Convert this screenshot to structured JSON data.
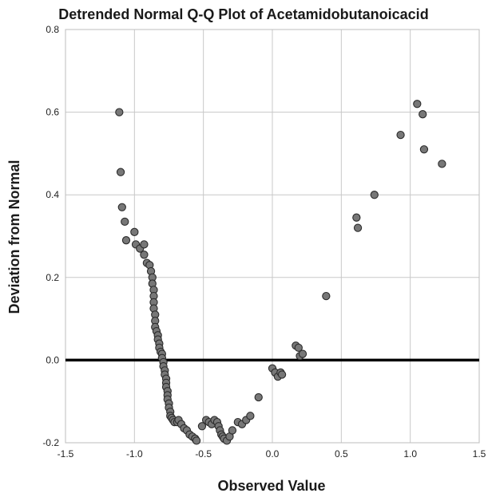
{
  "chart_data": {
    "type": "scatter",
    "title": "Detrended Normal Q-Q Plot of Acetamidobutanoicacid",
    "xlabel": "Observed Value",
    "ylabel": "Deviation from Normal",
    "xlim": [
      -1.5,
      1.5
    ],
    "ylim": [
      -0.2,
      0.8
    ],
    "xticks": [
      -1.5,
      -1.0,
      -0.5,
      0.0,
      0.5,
      1.0,
      1.5
    ],
    "xtick_labels": [
      "-1.5",
      "-1.0",
      "-0.5",
      "0.0",
      "0.5",
      "1.0",
      "1.5"
    ],
    "yticks": [
      -0.2,
      0.0,
      0.2,
      0.4,
      0.6,
      0.8
    ],
    "ytick_labels": [
      "-0.2",
      "0.0",
      "0.2",
      "0.4",
      "0.6",
      "0.8"
    ],
    "grid": true,
    "reference_line_y": 0.0,
    "colors": {
      "marker_fill": "#777777",
      "marker_edge": "#2b2b2b",
      "grid": "#c8c8c8",
      "reference_line": "#000000"
    },
    "points": [
      {
        "x": -1.11,
        "y": 0.6
      },
      {
        "x": -1.1,
        "y": 0.455
      },
      {
        "x": -1.09,
        "y": 0.37
      },
      {
        "x": -1.07,
        "y": 0.335
      },
      {
        "x": -1.06,
        "y": 0.29
      },
      {
        "x": -1.0,
        "y": 0.31
      },
      {
        "x": -0.99,
        "y": 0.28
      },
      {
        "x": -0.96,
        "y": 0.27
      },
      {
        "x": -0.93,
        "y": 0.28
      },
      {
        "x": -0.93,
        "y": 0.255
      },
      {
        "x": -0.91,
        "y": 0.235
      },
      {
        "x": -0.89,
        "y": 0.23
      },
      {
        "x": -0.88,
        "y": 0.215
      },
      {
        "x": -0.87,
        "y": 0.2
      },
      {
        "x": -0.87,
        "y": 0.185
      },
      {
        "x": -0.86,
        "y": 0.17
      },
      {
        "x": -0.86,
        "y": 0.155
      },
      {
        "x": -0.86,
        "y": 0.14
      },
      {
        "x": -0.86,
        "y": 0.125
      },
      {
        "x": -0.85,
        "y": 0.11
      },
      {
        "x": -0.85,
        "y": 0.095
      },
      {
        "x": -0.85,
        "y": 0.08
      },
      {
        "x": -0.84,
        "y": 0.07
      },
      {
        "x": -0.83,
        "y": 0.06
      },
      {
        "x": -0.83,
        "y": 0.05
      },
      {
        "x": -0.82,
        "y": 0.04
      },
      {
        "x": -0.82,
        "y": 0.03
      },
      {
        "x": -0.81,
        "y": 0.02
      },
      {
        "x": -0.8,
        "y": 0.015
      },
      {
        "x": -0.8,
        "y": 0.005
      },
      {
        "x": -0.79,
        "y": -0.005
      },
      {
        "x": -0.79,
        "y": -0.015
      },
      {
        "x": -0.78,
        "y": -0.025
      },
      {
        "x": -0.78,
        "y": -0.035
      },
      {
        "x": -0.77,
        "y": -0.045
      },
      {
        "x": -0.77,
        "y": -0.055
      },
      {
        "x": -0.77,
        "y": -0.065
      },
      {
        "x": -0.76,
        "y": -0.075
      },
      {
        "x": -0.76,
        "y": -0.085
      },
      {
        "x": -0.76,
        "y": -0.095
      },
      {
        "x": -0.75,
        "y": -0.105
      },
      {
        "x": -0.75,
        "y": -0.115
      },
      {
        "x": -0.74,
        "y": -0.125
      },
      {
        "x": -0.74,
        "y": -0.135
      },
      {
        "x": -0.73,
        "y": -0.14
      },
      {
        "x": -0.72,
        "y": -0.145
      },
      {
        "x": -0.71,
        "y": -0.15
      },
      {
        "x": -0.69,
        "y": -0.15
      },
      {
        "x": -0.68,
        "y": -0.145
      },
      {
        "x": -0.66,
        "y": -0.155
      },
      {
        "x": -0.64,
        "y": -0.165
      },
      {
        "x": -0.62,
        "y": -0.17
      },
      {
        "x": -0.6,
        "y": -0.18
      },
      {
        "x": -0.58,
        "y": -0.185
      },
      {
        "x": -0.56,
        "y": -0.19
      },
      {
        "x": -0.55,
        "y": -0.195
      },
      {
        "x": -0.51,
        "y": -0.16
      },
      {
        "x": -0.48,
        "y": -0.145
      },
      {
        "x": -0.46,
        "y": -0.15
      },
      {
        "x": -0.44,
        "y": -0.155
      },
      {
        "x": -0.42,
        "y": -0.145
      },
      {
        "x": -0.4,
        "y": -0.15
      },
      {
        "x": -0.39,
        "y": -0.16
      },
      {
        "x": -0.38,
        "y": -0.17
      },
      {
        "x": -0.37,
        "y": -0.18
      },
      {
        "x": -0.36,
        "y": -0.185
      },
      {
        "x": -0.35,
        "y": -0.19
      },
      {
        "x": -0.33,
        "y": -0.195
      },
      {
        "x": -0.31,
        "y": -0.185
      },
      {
        "x": -0.29,
        "y": -0.17
      },
      {
        "x": -0.25,
        "y": -0.15
      },
      {
        "x": -0.22,
        "y": -0.155
      },
      {
        "x": -0.19,
        "y": -0.145
      },
      {
        "x": -0.16,
        "y": -0.135
      },
      {
        "x": -0.1,
        "y": -0.09
      },
      {
        "x": 0.0,
        "y": -0.02
      },
      {
        "x": 0.02,
        "y": -0.03
      },
      {
        "x": 0.04,
        "y": -0.04
      },
      {
        "x": 0.06,
        "y": -0.03
      },
      {
        "x": 0.07,
        "y": -0.035
      },
      {
        "x": 0.17,
        "y": 0.035
      },
      {
        "x": 0.19,
        "y": 0.03
      },
      {
        "x": 0.2,
        "y": 0.01
      },
      {
        "x": 0.22,
        "y": 0.015
      },
      {
        "x": 0.39,
        "y": 0.155
      },
      {
        "x": 0.61,
        "y": 0.345
      },
      {
        "x": 0.62,
        "y": 0.32
      },
      {
        "x": 0.74,
        "y": 0.4
      },
      {
        "x": 0.93,
        "y": 0.545
      },
      {
        "x": 1.05,
        "y": 0.62
      },
      {
        "x": 1.09,
        "y": 0.595
      },
      {
        "x": 1.1,
        "y": 0.51
      },
      {
        "x": 1.23,
        "y": 0.475
      }
    ]
  }
}
